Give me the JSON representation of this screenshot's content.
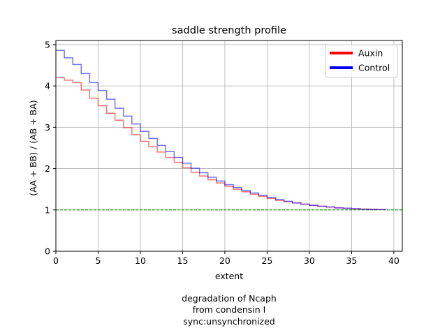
{
  "chart_data": {
    "type": "line",
    "title": "saddle strength profile",
    "xlabel": "extent",
    "ylabel": "(AA + BB) / (AB + BA)",
    "xlim": [
      0,
      41
    ],
    "ylim": [
      0,
      5.1
    ],
    "x_ticks": [
      "0",
      "5",
      "10",
      "15",
      "20",
      "25",
      "30",
      "35",
      "40"
    ],
    "y_ticks": [
      "0",
      "1",
      "2",
      "3",
      "4",
      "5"
    ],
    "grid": true,
    "legend_position": "top-right",
    "reference_line": {
      "y": 1,
      "color": "#008000",
      "style": "dashed"
    },
    "series": [
      {
        "name": "Auxin",
        "color": "#ff0000",
        "step": "post",
        "x": [
          0,
          1,
          2,
          3,
          4,
          5,
          6,
          7,
          8,
          9,
          10,
          11,
          12,
          13,
          14,
          15,
          16,
          17,
          18,
          19,
          20,
          21,
          22,
          23,
          24,
          25,
          26,
          27,
          28,
          29,
          30,
          31,
          32,
          33,
          34,
          35,
          36,
          37,
          38,
          39
        ],
        "values": [
          4.2,
          4.14,
          4.08,
          3.9,
          3.7,
          3.52,
          3.34,
          3.17,
          2.99,
          2.82,
          2.66,
          2.53,
          2.4,
          2.27,
          2.15,
          2.02,
          1.91,
          1.82,
          1.73,
          1.65,
          1.57,
          1.5,
          1.44,
          1.38,
          1.33,
          1.28,
          1.23,
          1.2,
          1.17,
          1.14,
          1.11,
          1.09,
          1.07,
          1.05,
          1.04,
          1.03,
          1.02,
          1.015,
          1.01,
          1.0
        ]
      },
      {
        "name": "Control",
        "color": "#0000ff",
        "step": "post",
        "x": [
          0,
          1,
          2,
          3,
          4,
          5,
          6,
          7,
          8,
          9,
          10,
          11,
          12,
          13,
          14,
          15,
          16,
          17,
          18,
          19,
          20,
          21,
          22,
          23,
          24,
          25,
          26,
          27,
          28,
          29,
          30,
          31,
          32,
          33,
          34,
          35,
          36,
          37,
          38,
          39
        ],
        "values": [
          4.86,
          4.68,
          4.52,
          4.3,
          4.08,
          3.89,
          3.68,
          3.46,
          3.27,
          3.08,
          2.9,
          2.73,
          2.56,
          2.41,
          2.27,
          2.13,
          2.01,
          1.9,
          1.79,
          1.7,
          1.61,
          1.54,
          1.47,
          1.41,
          1.35,
          1.3,
          1.25,
          1.21,
          1.17,
          1.14,
          1.11,
          1.09,
          1.07,
          1.05,
          1.04,
          1.03,
          1.02,
          1.015,
          1.01,
          1.0
        ]
      }
    ]
  },
  "caption": {
    "line1": "degradation of Ncaph",
    "line2": "from condensin I",
    "line3": "sync:unsynchronized"
  }
}
